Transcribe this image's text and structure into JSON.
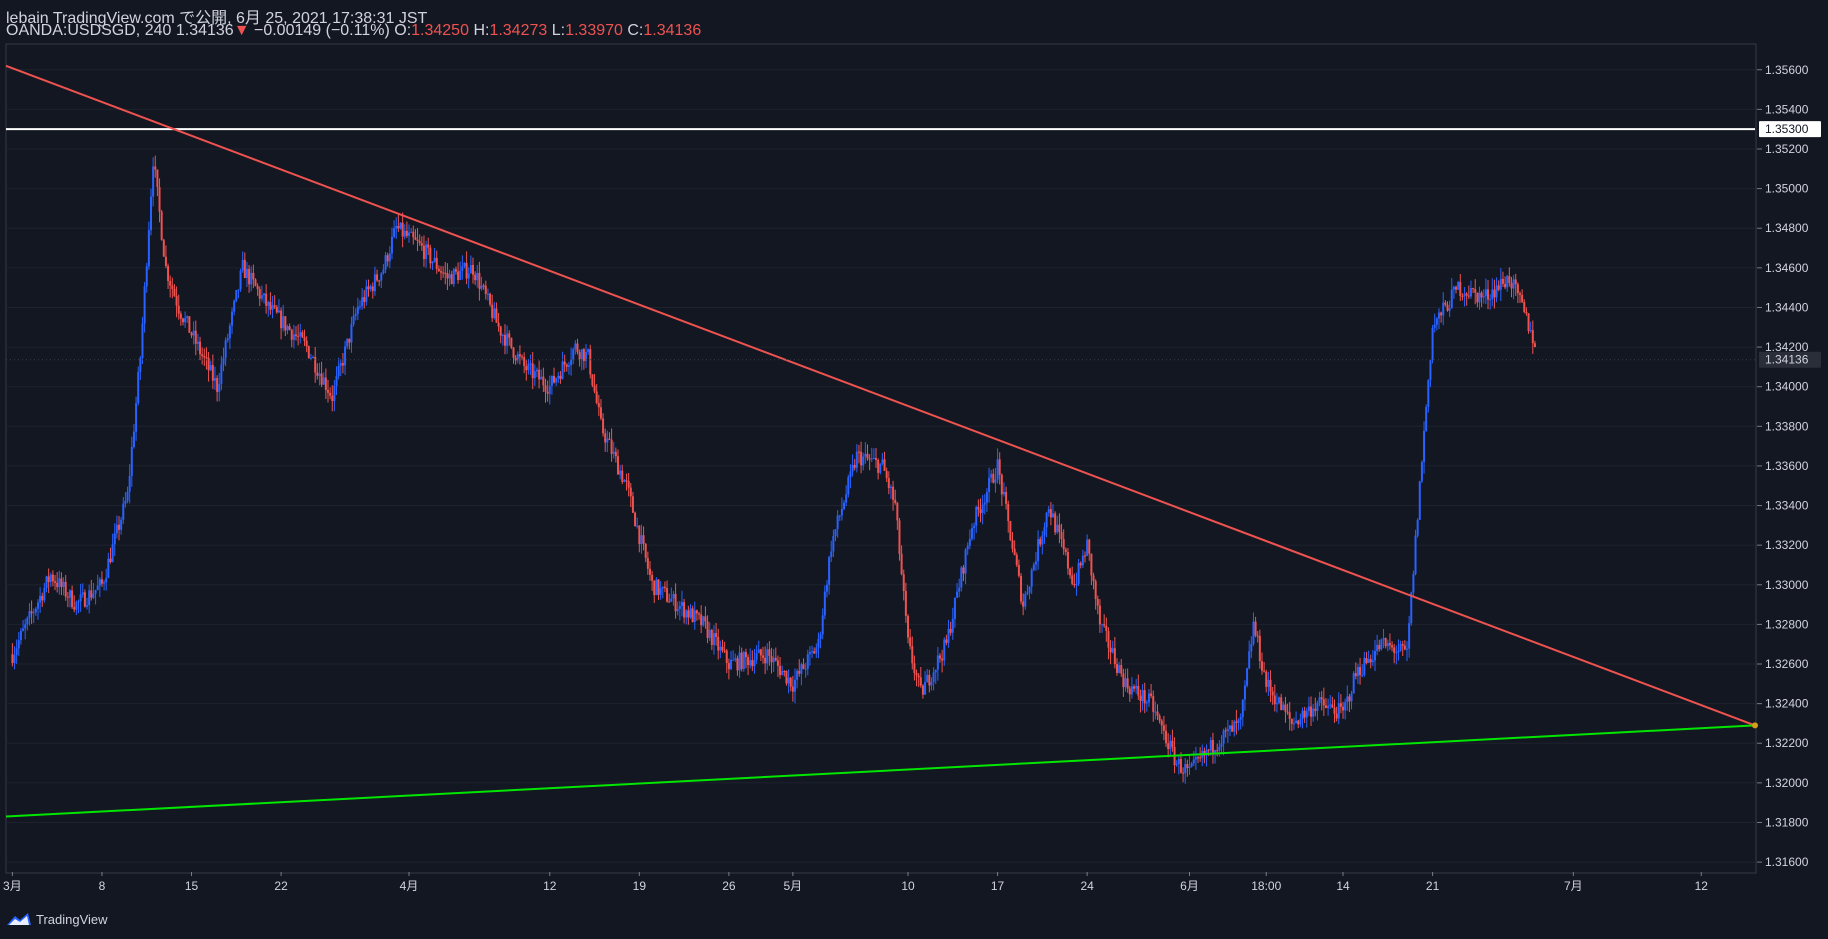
{
  "header": {
    "publish_line": "lebain TradingView.com で公開, 6月 25, 2021 17:38:31 JST",
    "symbol": "OANDA:USDSGD, 240",
    "last": "1.34136",
    "arrow": "▼",
    "change": "−0.00149 (−0.11%)",
    "o_label": "O:",
    "o_value": "1.34250",
    "h_label": "H:",
    "h_value": "1.34273",
    "l_label": "L:",
    "l_value": "1.33970",
    "c_label": "C:",
    "c_value": "1.34136"
  },
  "footer": {
    "brand": "TradingView"
  },
  "colors": {
    "background": "#131722",
    "up": "#2962ff",
    "down": "#ef5350",
    "resistance": "#ef5350",
    "support": "#00e600",
    "hline": "#ffffff",
    "grid": "#1e222d",
    "axis_text": "#d1d4dc"
  },
  "chart_data": {
    "type": "candlestick",
    "symbol": "OANDA:USDSGD",
    "timeframe": "240",
    "ylim": [
      1.3155,
      1.3573
    ],
    "y_ticks": [
      "1.35600",
      "1.35400",
      "1.35200",
      "1.35000",
      "1.34800",
      "1.34600",
      "1.34400",
      "1.34200",
      "1.34000",
      "1.33800",
      "1.33600",
      "1.33400",
      "1.33200",
      "1.33000",
      "1.32800",
      "1.32600",
      "1.32400",
      "1.32200",
      "1.32000",
      "1.31800",
      "1.31600"
    ],
    "x_ticks": [
      "3月",
      "8",
      "15",
      "22",
      "4月",
      "12",
      "19",
      "26",
      "5月",
      "10",
      "17",
      "24",
      "6月",
      "18:00",
      "14",
      "21",
      "7月",
      "12"
    ],
    "x_tick_days": [
      1,
      8,
      15,
      22,
      32,
      43,
      50,
      57,
      62,
      71,
      78,
      85,
      93,
      99,
      105,
      112,
      123,
      133
    ],
    "x_range_days": [
      0.5,
      137.2
    ],
    "price_labels": {
      "horizontal_line": "1.35300",
      "last_price": "1.34136"
    },
    "horizontal_line": {
      "value": 1.353
    },
    "resistance_line": {
      "from": [
        0.5,
        1.3562
      ],
      "to": [
        137.2,
        1.3229
      ]
    },
    "support_line": {
      "from": [
        0.5,
        1.3183
      ],
      "to": [
        137.2,
        1.3229
      ]
    },
    "path_anchors": [
      [
        1,
        1.3265
      ],
      [
        4,
        1.3305
      ],
      [
        6,
        1.329
      ],
      [
        8,
        1.33
      ],
      [
        10,
        1.3345
      ],
      [
        11,
        1.3415
      ],
      [
        12,
        1.3515
      ],
      [
        13,
        1.346
      ],
      [
        14,
        1.344
      ],
      [
        17,
        1.34
      ],
      [
        19,
        1.346
      ],
      [
        21,
        1.344
      ],
      [
        24,
        1.342
      ],
      [
        26,
        1.3395
      ],
      [
        28,
        1.344
      ],
      [
        30,
        1.346
      ],
      [
        31,
        1.348
      ],
      [
        33,
        1.347
      ],
      [
        35,
        1.3455
      ],
      [
        37,
        1.346
      ],
      [
        39,
        1.343
      ],
      [
        41,
        1.341
      ],
      [
        43,
        1.34
      ],
      [
        45,
        1.342
      ],
      [
        46,
        1.3415
      ],
      [
        47,
        1.338
      ],
      [
        49,
        1.335
      ],
      [
        51,
        1.33
      ],
      [
        53,
        1.329
      ],
      [
        55,
        1.328
      ],
      [
        57,
        1.326
      ],
      [
        60,
        1.3265
      ],
      [
        62,
        1.325
      ],
      [
        64,
        1.327
      ],
      [
        65,
        1.332
      ],
      [
        67,
        1.3365
      ],
      [
        69,
        1.336
      ],
      [
        70,
        1.334
      ],
      [
        71,
        1.327
      ],
      [
        72,
        1.3245
      ],
      [
        74,
        1.327
      ],
      [
        76,
        1.333
      ],
      [
        78,
        1.336
      ],
      [
        80,
        1.329
      ],
      [
        82,
        1.334
      ],
      [
        84,
        1.33
      ],
      [
        85,
        1.332
      ],
      [
        86,
        1.328
      ],
      [
        88,
        1.325
      ],
      [
        90,
        1.324
      ],
      [
        92,
        1.321
      ],
      [
        93,
        1.3205
      ],
      [
        95,
        1.322
      ],
      [
        97,
        1.323
      ],
      [
        98,
        1.328
      ],
      [
        99,
        1.325
      ],
      [
        101,
        1.323
      ],
      [
        103,
        1.324
      ],
      [
        105,
        1.3235
      ],
      [
        106,
        1.3255
      ],
      [
        108,
        1.327
      ],
      [
        110,
        1.3265
      ],
      [
        111,
        1.335
      ],
      [
        112,
        1.343
      ],
      [
        114,
        1.345
      ],
      [
        116,
        1.3445
      ],
      [
        118,
        1.3455
      ],
      [
        119,
        1.344
      ],
      [
        120,
        1.3422
      ]
    ]
  }
}
